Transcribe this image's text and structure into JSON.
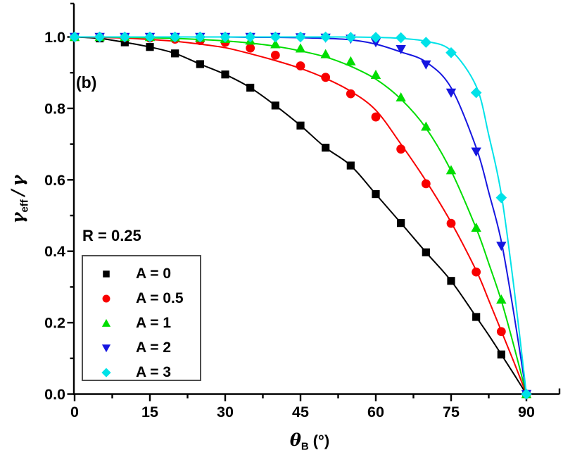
{
  "chart_data": {
    "type": "scatter",
    "panel_label": "(b)",
    "annotation": "R = 0.25",
    "xlabel": {
      "symbol": "θ",
      "subscript": "B",
      "units": "(°)"
    },
    "ylabel": {
      "symbol": "γ",
      "subscript": "eff",
      "separator": "/",
      "symbol2": "γ"
    },
    "xlim": [
      0,
      90
    ],
    "ylim": [
      0.0,
      1.0
    ],
    "grid": false,
    "legend_position": "middle-left",
    "x_major_ticks": [
      0,
      15,
      30,
      45,
      60,
      75,
      90
    ],
    "x_tick_labels": [
      "0",
      "15",
      "30",
      "45",
      "60",
      "75",
      "90"
    ],
    "x_minor_ticks": [
      7.5,
      22.5,
      37.5,
      52.5,
      67.5,
      82.5
    ],
    "y_major_ticks": [
      0.0,
      0.2,
      0.4,
      0.6,
      0.8,
      1.0
    ],
    "y_tick_labels": [
      "0.0",
      "0.2",
      "0.4",
      "0.6",
      "0.8",
      "1.0"
    ],
    "y_minor_ticks": [
      0.1,
      0.3,
      0.5,
      0.7,
      0.9
    ],
    "series": [
      {
        "key": "a-0",
        "name": "A = 0",
        "marker": "square",
        "color": "#000000",
        "x": [
          0,
          5,
          10,
          15,
          20,
          25,
          30,
          35,
          40,
          45,
          50,
          55,
          60,
          65,
          70,
          75,
          80,
          85,
          90
        ],
        "y": [
          1.0,
          0.996,
          0.985,
          0.972,
          0.954,
          0.924,
          0.895,
          0.858,
          0.808,
          0.752,
          0.69,
          0.64,
          0.56,
          0.479,
          0.397,
          0.317,
          0.216,
          0.111,
          0.0
        ],
        "line": {
          "x": [
            0,
            5,
            10,
            15,
            20,
            25,
            30,
            35,
            40,
            45,
            50,
            55,
            60,
            65,
            70,
            75,
            80,
            82.5,
            85,
            87.5,
            90
          ],
          "y": [
            1.0,
            0.996,
            0.985,
            0.972,
            0.954,
            0.924,
            0.895,
            0.858,
            0.808,
            0.752,
            0.69,
            0.64,
            0.56,
            0.479,
            0.397,
            0.317,
            0.216,
            0.165,
            0.111,
            0.056,
            0.0
          ]
        }
      },
      {
        "key": "a-0p5",
        "name": "A = 0.5",
        "marker": "circle",
        "color": "#f80000",
        "x": [
          0,
          5,
          10,
          15,
          20,
          25,
          30,
          35,
          40,
          45,
          50,
          55,
          60,
          65,
          70,
          75,
          80,
          85,
          90
        ],
        "y": [
          1.0,
          1.0,
          0.999,
          0.997,
          0.994,
          0.99,
          0.985,
          0.969,
          0.949,
          0.919,
          0.887,
          0.841,
          0.776,
          0.686,
          0.589,
          0.478,
          0.342,
          0.175,
          0.0
        ],
        "line": {
          "x": [
            0,
            5,
            10,
            15,
            20,
            25,
            30,
            35,
            40,
            45,
            50,
            55,
            60,
            65,
            70,
            75,
            80,
            82.5,
            85,
            87.5,
            90
          ],
          "y": [
            1.0,
            0.999,
            0.997,
            0.993,
            0.988,
            0.98,
            0.97,
            0.953,
            0.934,
            0.912,
            0.884,
            0.848,
            0.795,
            0.7,
            0.597,
            0.481,
            0.346,
            0.263,
            0.177,
            0.09,
            0.0
          ]
        }
      },
      {
        "key": "a-1",
        "name": "A = 1",
        "marker": "triangle-up",
        "color": "#00dd00",
        "x": [
          0,
          5,
          10,
          15,
          20,
          25,
          30,
          35,
          40,
          45,
          50,
          55,
          60,
          65,
          70,
          75,
          80,
          85,
          90
        ],
        "y": [
          1.0,
          1.0,
          1.0,
          1.0,
          0.999,
          0.998,
          0.995,
          0.99,
          0.98,
          0.968,
          0.952,
          0.932,
          0.894,
          0.831,
          0.749,
          0.627,
          0.466,
          0.265,
          0.0
        ],
        "line": {
          "x": [
            0,
            5,
            10,
            15,
            20,
            25,
            30,
            35,
            40,
            45,
            50,
            55,
            60,
            65,
            70,
            75,
            80,
            82.5,
            85,
            87.5,
            90
          ],
          "y": [
            1.0,
            1.0,
            0.999,
            0.998,
            0.996,
            0.993,
            0.989,
            0.983,
            0.974,
            0.961,
            0.944,
            0.918,
            0.882,
            0.826,
            0.745,
            0.625,
            0.464,
            0.366,
            0.262,
            0.135,
            0.0
          ]
        }
      },
      {
        "key": "a-2",
        "name": "A = 2",
        "marker": "triangle-down",
        "color": "#1616e0",
        "x": [
          0,
          5,
          10,
          15,
          20,
          25,
          30,
          35,
          40,
          45,
          50,
          55,
          60,
          65,
          70,
          75,
          80,
          85,
          90
        ],
        "y": [
          1.0,
          1.0,
          1.0,
          1.0,
          1.0,
          1.0,
          1.0,
          1.0,
          1.0,
          0.999,
          0.998,
          0.995,
          0.985,
          0.966,
          0.923,
          0.844,
          0.679,
          0.415,
          0.0
        ],
        "line": {
          "x": [
            0,
            5,
            10,
            15,
            20,
            25,
            30,
            35,
            40,
            45,
            50,
            55,
            60,
            65,
            70,
            75,
            80,
            82.5,
            85,
            87.5,
            90
          ],
          "y": [
            1.0,
            1.0,
            1.0,
            1.0,
            1.0,
            1.0,
            1.0,
            0.999,
            0.999,
            0.998,
            0.996,
            0.992,
            0.98,
            0.958,
            0.93,
            0.858,
            0.69,
            0.565,
            0.428,
            0.225,
            0.0
          ]
        }
      },
      {
        "key": "a-3",
        "name": "A = 3",
        "marker": "diamond",
        "color": "#00e2e8",
        "x": [
          0,
          5,
          10,
          15,
          20,
          25,
          30,
          35,
          40,
          45,
          50,
          55,
          60,
          65,
          70,
          75,
          80,
          85,
          90
        ],
        "y": [
          1.0,
          1.0,
          1.0,
          1.0,
          1.0,
          1.0,
          1.0,
          1.0,
          1.0,
          1.0,
          1.0,
          0.999,
          0.999,
          0.998,
          0.985,
          0.956,
          0.844,
          0.55,
          0.0
        ],
        "line": {
          "x": [
            0,
            5,
            10,
            15,
            20,
            25,
            30,
            35,
            40,
            45,
            50,
            55,
            60,
            65,
            70,
            75,
            80,
            82.5,
            85,
            87.5,
            90
          ],
          "y": [
            1.0,
            1.0,
            1.0,
            1.0,
            1.0,
            1.0,
            1.0,
            1.0,
            1.0,
            1.0,
            1.0,
            1.0,
            0.999,
            0.996,
            0.988,
            0.962,
            0.862,
            0.725,
            0.56,
            0.3,
            0.0
          ]
        }
      }
    ]
  }
}
